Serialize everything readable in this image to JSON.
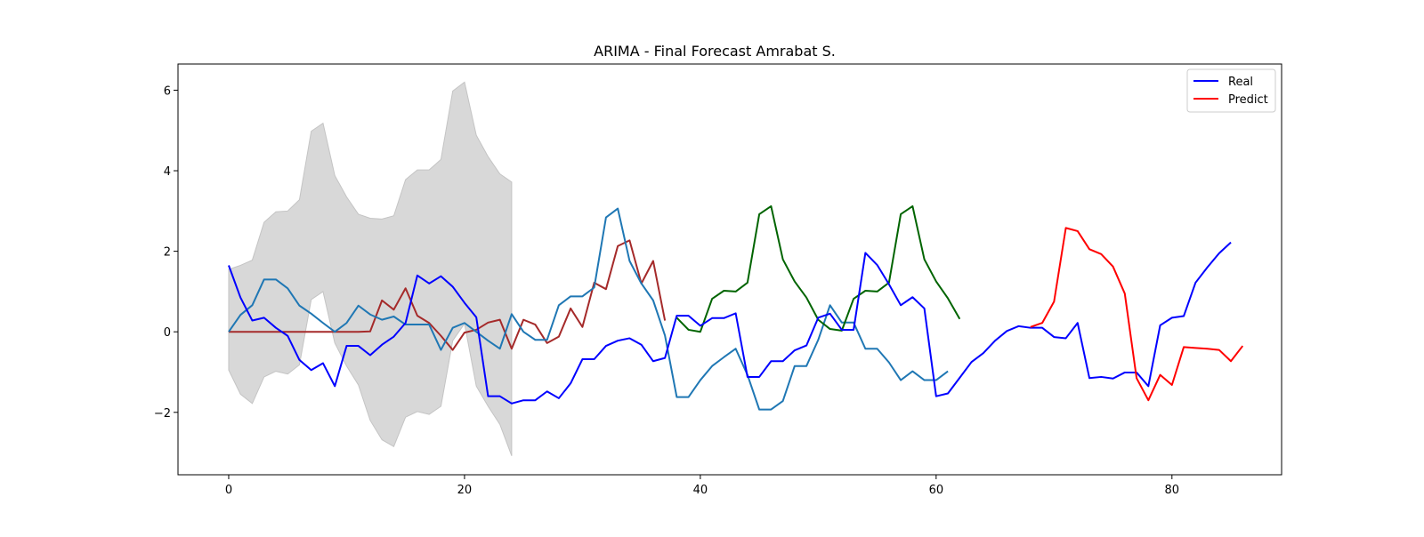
{
  "chart_data": {
    "type": "line",
    "title": "ARIMA - Final Forecast Amrabat S.",
    "xlabel": "",
    "ylabel": "",
    "xlim": [
      -4.3,
      89.3
    ],
    "ylim": [
      -3.55,
      6.65
    ],
    "xticks": [
      0,
      20,
      40,
      60,
      80
    ],
    "yticks": [
      -2,
      0,
      2,
      4,
      6
    ],
    "legend_position": "top-right",
    "legend": [
      {
        "label": "Real",
        "color": "#0000ff"
      },
      {
        "label": "Predict",
        "color": "#ff0000"
      }
    ],
    "confidence_band": {
      "color": "#d8d8d8",
      "x_start": 0,
      "upper": [
        1.55,
        1.65,
        1.78,
        2.72,
        2.98,
        3.0,
        3.28,
        4.98,
        5.18,
        3.88,
        3.35,
        2.92,
        2.82,
        2.8,
        2.88,
        3.78,
        4.02,
        4.02,
        4.28,
        5.98,
        6.2,
        4.88,
        4.35,
        3.92,
        3.72
      ],
      "lower": [
        -0.95,
        -1.55,
        -1.78,
        -1.12,
        -0.98,
        -1.05,
        -0.82,
        0.8,
        1.0,
        -0.28,
        -0.85,
        -1.32,
        -2.2,
        -2.68,
        -2.85,
        -2.12,
        -1.98,
        -2.05,
        -1.85,
        -0.22,
        0.2,
        -1.35,
        -1.85,
        -2.3,
        -3.08
      ]
    },
    "series": [
      {
        "name": "Real",
        "color": "#0000ff",
        "x_start": 0,
        "values": [
          1.65,
          0.85,
          0.28,
          0.35,
          0.1,
          -0.1,
          -0.7,
          -0.95,
          -0.78,
          -1.35,
          -0.35,
          -0.35,
          -0.58,
          -0.32,
          -0.12,
          0.22,
          1.4,
          1.2,
          1.38,
          1.12,
          0.72,
          0.36,
          -1.6,
          -1.6,
          -1.78,
          -1.7,
          -1.7,
          -1.48,
          -1.65,
          -1.28,
          -0.68,
          -0.68,
          -0.35,
          -0.22,
          -0.16,
          -0.32,
          -0.73,
          -0.65,
          0.4,
          0.4,
          0.15,
          0.34,
          0.34,
          0.46,
          -1.12,
          -1.12,
          -0.73,
          -0.73,
          -0.46,
          -0.34,
          0.35,
          0.45,
          0.05,
          0.05,
          1.96,
          1.66,
          1.18,
          0.66,
          0.86,
          0.58,
          -1.6,
          -1.53,
          -1.14,
          -0.75,
          -0.53,
          -0.22,
          0.02,
          0.14,
          0.1,
          0.1,
          -0.13,
          -0.16,
          0.22,
          -1.15,
          -1.12,
          -1.16,
          -1.01,
          -1.01,
          -1.35,
          0.16,
          0.35,
          0.39,
          1.22,
          1.6,
          1.95,
          2.22
        ]
      },
      {
        "name": "",
        "color": "#1f77b4",
        "x_start": 0,
        "values": [
          0.0,
          0.42,
          0.66,
          1.3,
          1.3,
          1.08,
          0.65,
          0.45,
          0.22,
          0.0,
          0.22,
          0.65,
          0.43,
          0.3,
          0.38,
          0.18,
          0.18,
          0.18,
          -0.45,
          0.1,
          0.22,
          0.0,
          -0.22,
          -0.42,
          0.44,
          0.0,
          -0.2,
          -0.2,
          0.66,
          0.88,
          0.88,
          1.1,
          2.84,
          3.06,
          1.76,
          1.2,
          0.78,
          -0.09,
          -1.62,
          -1.62,
          -1.2,
          -0.85,
          -0.63,
          -0.42,
          -1.07,
          -1.93,
          -1.93,
          -1.72,
          -0.85,
          -0.85,
          -0.2,
          0.66,
          0.23,
          0.23,
          -0.42,
          -0.42,
          -0.76,
          -1.2,
          -0.98,
          -1.2,
          -1.2,
          -0.98
        ]
      },
      {
        "name": "",
        "color": "#a52a2a",
        "x_start": 0,
        "values": [
          0.0,
          0.0,
          0.0,
          0.0,
          0.0,
          0.0,
          0.0,
          0.0,
          0.0,
          0.0,
          0.0,
          0.0,
          0.01,
          0.78,
          0.55,
          1.08,
          0.4,
          0.22,
          -0.1,
          -0.45,
          -0.02,
          0.05,
          0.23,
          0.3,
          -0.42,
          0.3,
          0.18,
          -0.28,
          -0.12,
          0.58,
          0.12,
          1.22,
          1.06,
          2.13,
          2.27,
          1.2,
          1.76,
          0.28
        ]
      },
      {
        "name": "",
        "color": "#006400",
        "x_start": 38,
        "values": [
          0.35,
          0.05,
          0.0,
          0.82,
          1.02,
          1.0,
          1.22,
          2.92,
          3.12,
          1.8,
          1.25,
          0.85,
          0.3,
          0.07,
          0.03,
          0.82,
          1.02,
          1.0,
          1.22,
          2.92,
          3.12,
          1.8,
          1.25,
          0.83,
          0.32
        ]
      },
      {
        "name": "Predict",
        "color": "#ff0000",
        "x_start": 68,
        "values": [
          0.12,
          0.22,
          0.75,
          2.58,
          2.5,
          2.05,
          1.93,
          1.62,
          0.95,
          -1.15,
          -1.7,
          -1.07,
          -1.32,
          -0.38,
          -0.4,
          -0.42,
          -0.45,
          -0.73,
          -0.35
        ]
      }
    ]
  }
}
